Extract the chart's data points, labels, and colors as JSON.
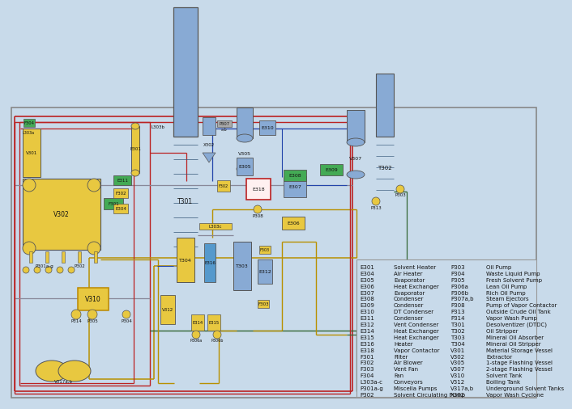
{
  "bg_color": "#c8daea",
  "legend_items_col1": [
    [
      "E301",
      "Solvent Heater"
    ],
    [
      "E304",
      "Air Heater"
    ],
    [
      "E305",
      "Evaporator"
    ],
    [
      "E306",
      "Heat Exchanger"
    ],
    [
      "E307",
      "Evaporator"
    ],
    [
      "E308",
      "Condenser"
    ],
    [
      "E309",
      "Condenser"
    ],
    [
      "E310",
      "DT Condenser"
    ],
    [
      "E311",
      "Condenser"
    ],
    [
      "E312",
      "Vent Condenser"
    ],
    [
      "E314",
      "Heat Exchanger"
    ],
    [
      "E315",
      "Heat Exchanger"
    ],
    [
      "E316",
      "Heater"
    ],
    [
      "E318",
      "Vapor Contactor"
    ],
    [
      "F301",
      "Filter"
    ],
    [
      "F302",
      "Air Blower"
    ],
    [
      "F303",
      "Vent Fan"
    ],
    [
      "F304",
      "Fan"
    ],
    [
      "L303a-c",
      "Conveyors"
    ],
    [
      "P301a-g",
      "Miscella Pumps"
    ],
    [
      "P302",
      "Solvent Circulating Pump"
    ]
  ],
  "legend_items_col2": [
    [
      "P303",
      "Oil Pump"
    ],
    [
      "P304",
      "Waste Liquid Pump"
    ],
    [
      "P305",
      "Fresh Solvent Pump"
    ],
    [
      "P306a",
      "Lean Oil Pump"
    ],
    [
      "P306b",
      "Rich Oil Pump"
    ],
    [
      "P307a,b",
      "Steam Ejectors"
    ],
    [
      "P308",
      "Pump of Vapor Contactor"
    ],
    [
      "P313",
      "Outside Crude Oil Tank"
    ],
    [
      "P314",
      "Vapor Wash Pump"
    ],
    [
      "T301",
      "Desolventizer (DTDC)"
    ],
    [
      "T302",
      "Oil Stripper"
    ],
    [
      "T303",
      "Mineral Oil Absorber"
    ],
    [
      "T304",
      "Mineral Oil Stripper"
    ],
    [
      "V301",
      "Material Storage Vessel"
    ],
    [
      "V302",
      "Extractor"
    ],
    [
      "V305",
      "1-stage Flashing Vessel"
    ],
    [
      "V307",
      "2-stage Flashing Vessel"
    ],
    [
      "V310",
      "Solvent Tank"
    ],
    [
      "V312",
      "Boiling Tank"
    ],
    [
      "V317a,b",
      "Underground Solvent Tanks"
    ],
    [
      "X302",
      "Vapor Wash Cyclone"
    ]
  ],
  "yellow": "#e8c840",
  "yellow2": "#d4a800",
  "blue_eq": "#5599cc",
  "blue_light": "#88aad4",
  "green_eq": "#44aa55",
  "green2": "#228833",
  "gray_eq": "#aaaaaa",
  "dark": "#555555",
  "red_pipe": "#bb2222",
  "gold_pipe": "#b89000",
  "green_pipe": "#336633",
  "blue_pipe": "#2244aa",
  "gray_pipe": "#888899"
}
